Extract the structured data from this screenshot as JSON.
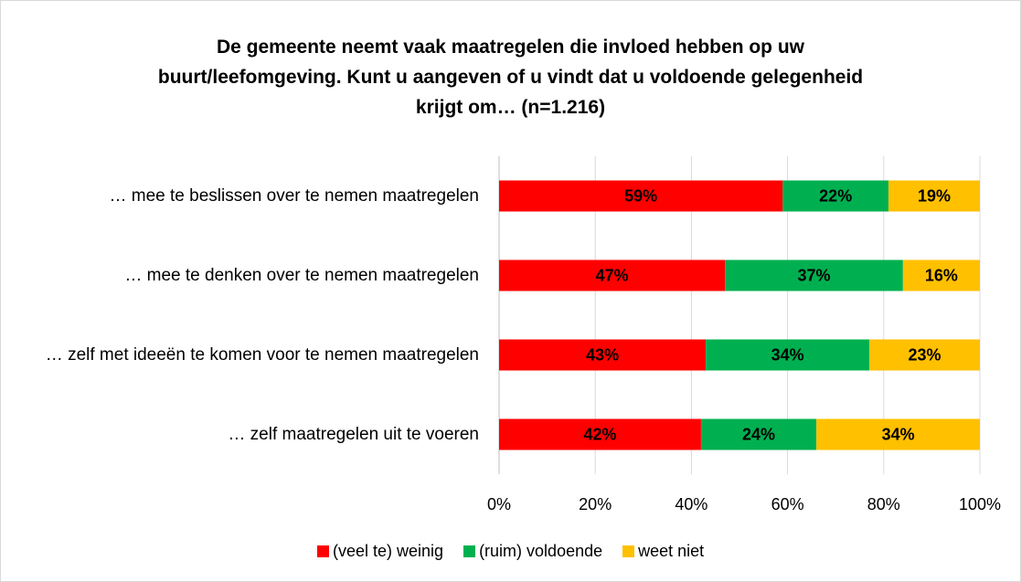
{
  "chart_data": {
    "type": "stacked-barh",
    "title": "De gemeente neemt vaak maatregelen die invloed hebben op uw buurt/leefomgeving. Kunt u aangeven of u vindt dat u voldoende gelegenheid krijgt om… (n=1.216)",
    "categories": [
      "… mee te beslissen over te nemen maatregelen",
      "… mee te denken over te nemen maatregelen",
      "… zelf met ideeën te komen voor te nemen maatregelen",
      "… zelf maatregelen uit te voeren"
    ],
    "series": [
      {
        "name": "(veel te) weinig",
        "color": "#ff0000",
        "values": [
          59,
          47,
          43,
          42
        ],
        "value_labels": [
          "59%",
          "47%",
          "43%",
          "42%"
        ]
      },
      {
        "name": "(ruim) voldoende",
        "color": "#00b050",
        "values": [
          22,
          37,
          34,
          24
        ],
        "value_labels": [
          "22%",
          "37%",
          "34%",
          "24%"
        ]
      },
      {
        "name": "weet niet",
        "color": "#ffc000",
        "values": [
          19,
          16,
          23,
          34
        ],
        "value_labels": [
          "19%",
          "16%",
          "23%",
          "34%"
        ]
      }
    ],
    "xlim": [
      0,
      100
    ],
    "xticks": [
      {
        "value": 0,
        "label": "0%"
      },
      {
        "value": 20,
        "label": "20%"
      },
      {
        "value": 40,
        "label": "40%"
      },
      {
        "value": 60,
        "label": "60%"
      },
      {
        "value": 80,
        "label": "80%"
      },
      {
        "value": 100,
        "label": "100%"
      }
    ],
    "grid": true,
    "legend": "bottom"
  }
}
